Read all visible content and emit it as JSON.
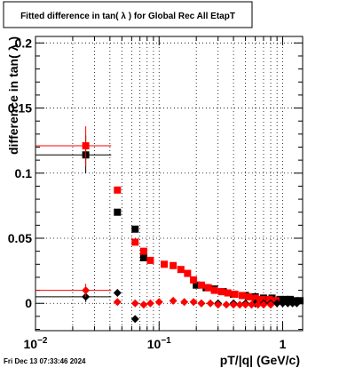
{
  "header": {
    "title": "Fitted difference in tan( λ ) for Global Rec All EtapT"
  },
  "footer": {
    "timestamp": "Fri Dec 13 07:33:46 2024"
  },
  "chart_data": {
    "type": "scatter",
    "title": "Fitted difference in tan( λ ) for Global Rec All EtapT",
    "xlabel": "pT/|q| (GeV/c)",
    "ylabel": "difference in tan( λ )",
    "xscale": "log",
    "xlim": [
      0.01,
      1.45
    ],
    "ylim": [
      -0.021,
      0.205
    ],
    "grid": true,
    "legend": "none",
    "x_ticks": [
      {
        "value": 0.01,
        "label": "10",
        "exp": "−2"
      },
      {
        "value": 0.1,
        "label": "10",
        "exp": "−1"
      },
      {
        "value": 1,
        "label": "1",
        "exp": ""
      }
    ],
    "y_ticks": [
      {
        "value": 0,
        "label": "0"
      },
      {
        "value": 0.05,
        "label": "0.05"
      },
      {
        "value": 0.1,
        "label": "0.1"
      },
      {
        "value": 0.15,
        "label": "0.15"
      },
      {
        "value": 0.2,
        "label": "0.2"
      }
    ],
    "series": [
      {
        "color": "#000000",
        "marker": "square",
        "points": [
          {
            "x": 0.0255,
            "y": 0.114,
            "xlo": 0.01,
            "xhi": 0.041,
            "ylo": 0.1,
            "yhi": 0.129
          },
          {
            "x": 0.046,
            "y": 0.07
          },
          {
            "x": 0.064,
            "y": 0.057
          },
          {
            "x": 0.075,
            "y": 0.035
          },
          {
            "x": 0.2,
            "y": 0.014
          },
          {
            "x": 0.24,
            "y": 0.012
          },
          {
            "x": 0.28,
            "y": 0.011
          },
          {
            "x": 0.33,
            "y": 0.009
          },
          {
            "x": 0.4,
            "y": 0.007
          },
          {
            "x": 0.5,
            "y": 0.006
          },
          {
            "x": 0.6,
            "y": 0.005
          },
          {
            "x": 0.7,
            "y": 0.004
          },
          {
            "x": 0.82,
            "y": 0.004
          },
          {
            "x": 0.95,
            "y": 0.003
          },
          {
            "x": 1.05,
            "y": 0.003
          },
          {
            "x": 1.15,
            "y": 0.003
          },
          {
            "x": 1.27,
            "y": 0.002
          },
          {
            "x": 1.38,
            "y": 0.002
          }
        ]
      },
      {
        "color": "#ff0000",
        "marker": "square",
        "points": [
          {
            "x": 0.0255,
            "y": 0.121,
            "xlo": 0.01,
            "xhi": 0.041,
            "ylo": 0.105,
            "yhi": 0.136
          },
          {
            "x": 0.046,
            "y": 0.087
          },
          {
            "x": 0.064,
            "y": 0.047
          },
          {
            "x": 0.075,
            "y": 0.04
          },
          {
            "x": 0.085,
            "y": 0.033
          },
          {
            "x": 0.11,
            "y": 0.03
          },
          {
            "x": 0.13,
            "y": 0.029
          },
          {
            "x": 0.15,
            "y": 0.026
          },
          {
            "x": 0.17,
            "y": 0.023
          },
          {
            "x": 0.19,
            "y": 0.018
          },
          {
            "x": 0.22,
            "y": 0.014
          },
          {
            "x": 0.25,
            "y": 0.012
          },
          {
            "x": 0.28,
            "y": 0.01
          },
          {
            "x": 0.32,
            "y": 0.009
          },
          {
            "x": 0.36,
            "y": 0.008
          },
          {
            "x": 0.41,
            "y": 0.007
          },
          {
            "x": 0.47,
            "y": 0.006
          },
          {
            "x": 0.53,
            "y": 0.005
          },
          {
            "x": 0.6,
            "y": 0.004
          },
          {
            "x": 0.68,
            "y": 0.003
          },
          {
            "x": 0.78,
            "y": 0.003
          },
          {
            "x": 0.88,
            "y": 0.002
          }
        ]
      },
      {
        "color": "#000000",
        "marker": "diamond",
        "points": [
          {
            "x": 0.0255,
            "y": 0.005,
            "xlo": 0.01,
            "xhi": 0.041,
            "ylo": 0.001,
            "yhi": 0.009
          },
          {
            "x": 0.046,
            "y": 0.008
          },
          {
            "x": 0.064,
            "y": -0.012
          },
          {
            "x": 0.22,
            "y": 0.0
          },
          {
            "x": 0.3,
            "y": 0.0
          },
          {
            "x": 0.4,
            "y": 0.0
          },
          {
            "x": 0.5,
            "y": 0.0
          },
          {
            "x": 0.6,
            "y": 0.0
          },
          {
            "x": 0.7,
            "y": 0.0
          },
          {
            "x": 0.8,
            "y": 0.0
          },
          {
            "x": 0.9,
            "y": 0.0
          },
          {
            "x": 1.0,
            "y": 0.0
          },
          {
            "x": 1.1,
            "y": 0.0
          },
          {
            "x": 1.2,
            "y": 0.0
          },
          {
            "x": 1.3,
            "y": 0.0
          }
        ]
      },
      {
        "color": "#ff0000",
        "marker": "diamond",
        "points": [
          {
            "x": 0.0255,
            "y": 0.01,
            "xlo": 0.01,
            "xhi": 0.041,
            "ylo": 0.005,
            "yhi": 0.015
          },
          {
            "x": 0.046,
            "y": 0.001
          },
          {
            "x": 0.064,
            "y": 0.0
          },
          {
            "x": 0.075,
            "y": -0.001
          },
          {
            "x": 0.085,
            "y": 0.0
          },
          {
            "x": 0.1,
            "y": 0.001
          },
          {
            "x": 0.13,
            "y": 0.002
          },
          {
            "x": 0.16,
            "y": 0.001
          },
          {
            "x": 0.19,
            "y": 0.001
          },
          {
            "x": 0.22,
            "y": 0.0
          },
          {
            "x": 0.26,
            "y": 0.0
          },
          {
            "x": 0.3,
            "y": -0.001
          },
          {
            "x": 0.35,
            "y": -0.001
          },
          {
            "x": 0.4,
            "y": -0.001
          },
          {
            "x": 0.45,
            "y": -0.001
          },
          {
            "x": 0.5,
            "y": -0.001
          },
          {
            "x": 0.56,
            "y": -0.001
          },
          {
            "x": 0.63,
            "y": -0.001
          },
          {
            "x": 0.7,
            "y": -0.001
          },
          {
            "x": 0.8,
            "y": -0.001
          }
        ]
      }
    ]
  }
}
